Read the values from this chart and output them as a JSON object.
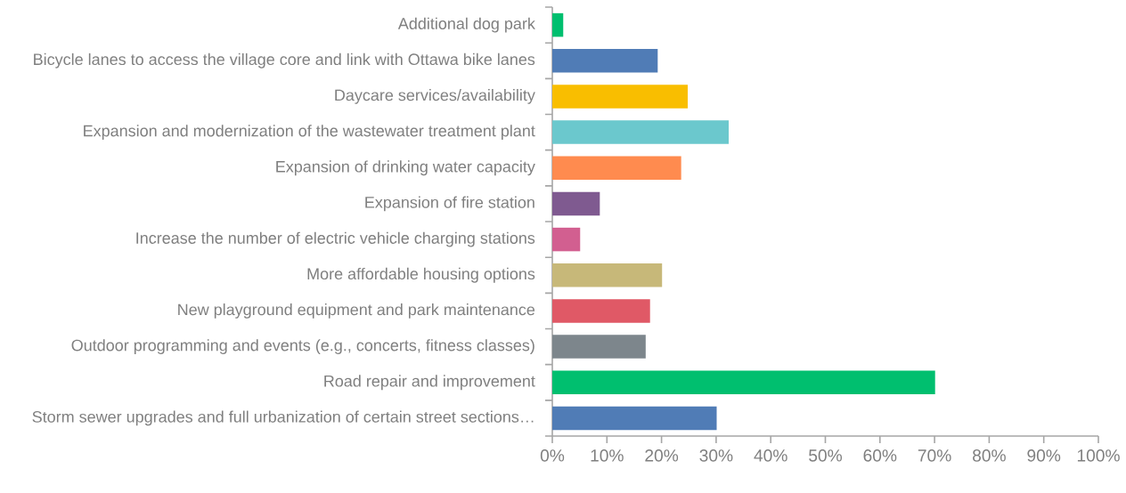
{
  "chart_data": {
    "type": "bar",
    "orientation": "horizontal",
    "categories": [
      "Additional dog park",
      "Bicycle lanes to access the village core and link with Ottawa bike lanes",
      "Daycare services/availability",
      "Expansion and modernization of the wastewater treatment plant",
      "Expansion of drinking water capacity",
      "Expansion of fire station",
      "Increase the number of electric vehicle charging stations",
      "More affordable housing options",
      "New playground equipment and park maintenance",
      "Outdoor programming and events (e.g., concerts, fitness classes)",
      "Road repair and improvement",
      "Storm sewer upgrades and full urbanization of certain street sections…"
    ],
    "values": [
      2.0,
      19.3,
      24.8,
      32.3,
      23.6,
      8.7,
      5.1,
      20.1,
      17.9,
      17.1,
      70.1,
      30.1
    ],
    "colors": [
      "#00bf6f",
      "#507cb6",
      "#f9be00",
      "#6bc8cd",
      "#ff8b4f",
      "#7f5a90",
      "#d25f90",
      "#c7b879",
      "#e05966",
      "#7d868c",
      "#00bf6f",
      "#507cb6"
    ],
    "xlim": [
      0,
      100
    ],
    "xticks": [
      {
        "value": 0,
        "label": "0%"
      },
      {
        "value": 10,
        "label": "10%"
      },
      {
        "value": 20,
        "label": "20%"
      },
      {
        "value": 30,
        "label": "30%"
      },
      {
        "value": 40,
        "label": "40%"
      },
      {
        "value": 50,
        "label": "50%"
      },
      {
        "value": 60,
        "label": "60%"
      },
      {
        "value": 70,
        "label": "70%"
      },
      {
        "value": 80,
        "label": "80%"
      },
      {
        "value": 90,
        "label": "90%"
      },
      {
        "value": 100,
        "label": "100%"
      }
    ],
    "grid": false
  }
}
